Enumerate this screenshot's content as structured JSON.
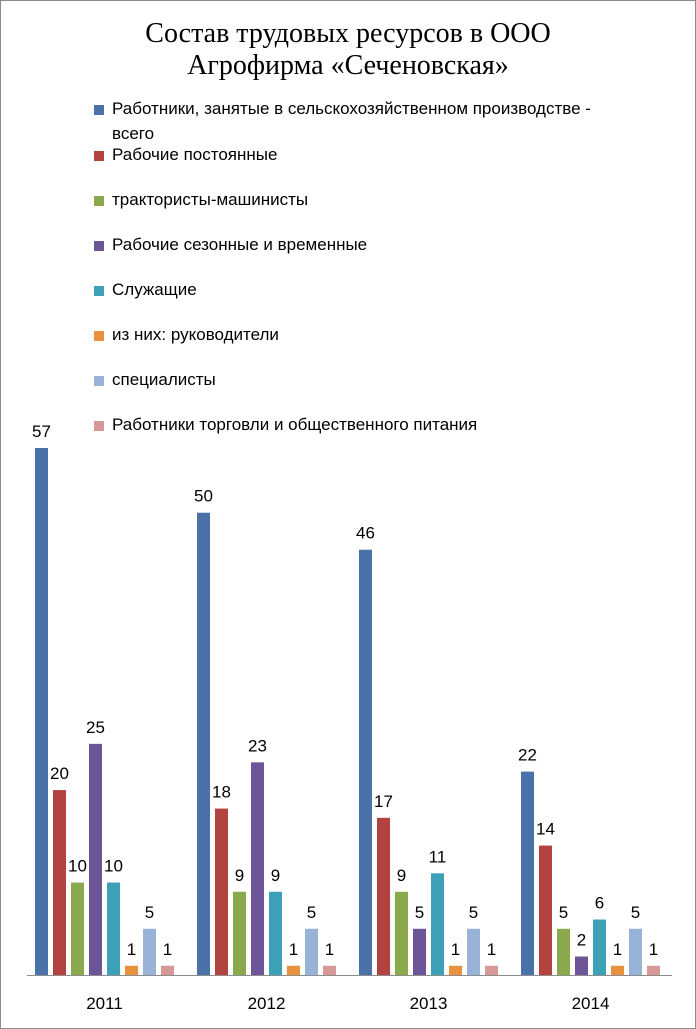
{
  "chart_data": {
    "type": "bar",
    "title_lines": [
      "Состав  трудовых  ресурсов  в ООО",
      "Агрофирма «Сеченовская»"
    ],
    "categories": [
      "2011",
      "2012",
      "2013",
      "2014"
    ],
    "ylim": [
      0,
      57
    ],
    "grid": false,
    "legend_position": "top",
    "series": [
      {
        "name": "Работники, занятые в сельскохозяйственном производстве - всего",
        "color": "#4a72a8",
        "values": [
          57,
          50,
          46,
          22
        ]
      },
      {
        "name": "Рабочие постоянные",
        "color": "#b3433f",
        "values": [
          20,
          18,
          17,
          14
        ]
      },
      {
        "name": "трактористы-машинисты",
        "color": "#8aa94d",
        "values": [
          10,
          9,
          9,
          5
        ]
      },
      {
        "name": "Рабочие сезонные и временные",
        "color": "#6e5597",
        "values": [
          25,
          23,
          5,
          2
        ]
      },
      {
        "name": "Служащие",
        "color": "#3ca0b6",
        "values": [
          10,
          9,
          11,
          6
        ]
      },
      {
        "name": "из них: руководители",
        "color": "#e8923e",
        "values": [
          1,
          1,
          1,
          1
        ]
      },
      {
        "name": "специалисты",
        "color": "#98b2d8",
        "values": [
          5,
          5,
          5,
          5
        ]
      },
      {
        "name": "Работники торговли и общественного питания",
        "color": "#d79998",
        "values": [
          1,
          1,
          1,
          1
        ]
      }
    ]
  }
}
